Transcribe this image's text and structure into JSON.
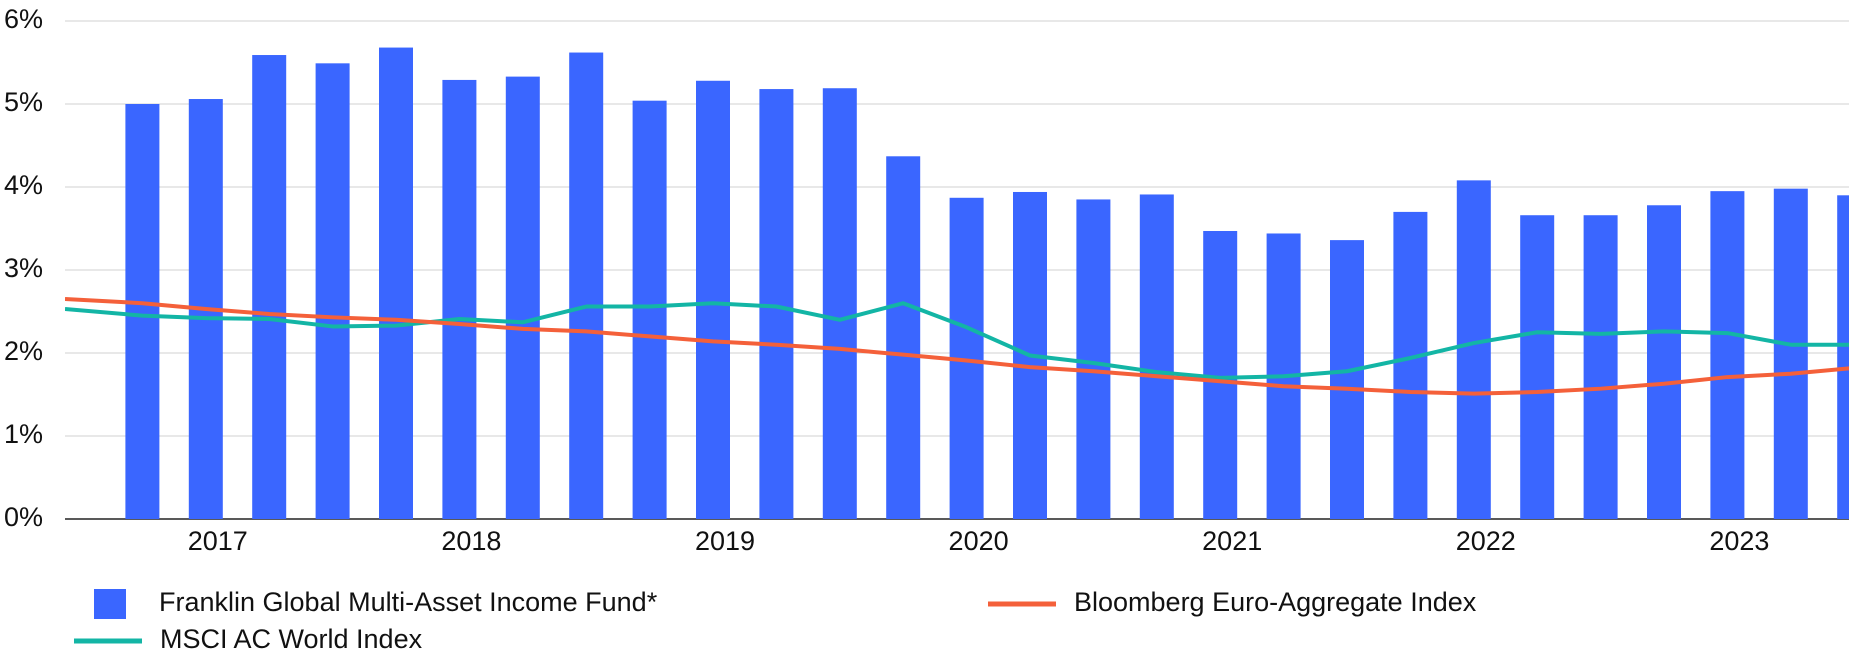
{
  "chart_data": {
    "type": "bar",
    "categories": [
      null,
      null,
      "2017",
      null,
      null,
      null,
      "2018",
      null,
      null,
      null,
      "2019",
      null,
      null,
      null,
      "2020",
      null,
      null,
      null,
      "2021",
      null,
      null,
      null,
      "2022",
      null,
      null,
      null,
      "2023",
      null,
      null
    ],
    "series": [
      {
        "name": "Franklin Global Multi-Asset Income Fund*",
        "type": "bar",
        "color": "#3a66ff",
        "values": [
          null,
          5.0,
          5.06,
          5.59,
          5.49,
          5.68,
          5.29,
          5.33,
          5.62,
          5.04,
          5.28,
          5.18,
          5.19,
          4.37,
          3.87,
          3.94,
          3.85,
          3.91,
          3.47,
          3.44,
          3.36,
          3.7,
          4.08,
          3.66,
          3.66,
          3.78,
          3.95,
          3.98,
          3.9
        ]
      },
      {
        "name": "MSCI AC World Index",
        "type": "line",
        "color": "#13b5a5",
        "values": [
          2.53,
          2.45,
          2.42,
          2.41,
          2.32,
          2.33,
          2.41,
          2.37,
          2.56,
          2.56,
          2.6,
          2.56,
          2.4,
          2.6,
          2.31,
          1.97,
          1.88,
          1.77,
          1.7,
          1.72,
          1.78,
          1.94,
          2.12,
          2.25,
          2.23,
          2.26,
          2.24,
          2.1,
          2.1
        ]
      },
      {
        "name": "Bloomberg Euro-Aggregate Index",
        "type": "line",
        "color": "#f4603a",
        "values": [
          2.65,
          2.6,
          2.53,
          2.47,
          2.43,
          2.4,
          2.35,
          2.29,
          2.26,
          2.2,
          2.14,
          2.1,
          2.05,
          1.98,
          1.91,
          1.83,
          1.78,
          1.72,
          1.66,
          1.6,
          1.57,
          1.53,
          1.51,
          1.53,
          1.57,
          1.63,
          1.71,
          1.75,
          1.82
        ]
      }
    ],
    "ylim": [
      0,
      6
    ],
    "yticks": [
      {
        "value": 0,
        "label": "0%"
      },
      {
        "value": 1,
        "label": "1%"
      },
      {
        "value": 2,
        "label": "2%"
      },
      {
        "value": 3,
        "label": "3%"
      },
      {
        "value": 4,
        "label": "4%"
      },
      {
        "value": 5,
        "label": "5%"
      },
      {
        "value": 6,
        "label": "6%"
      }
    ],
    "grid": true
  }
}
